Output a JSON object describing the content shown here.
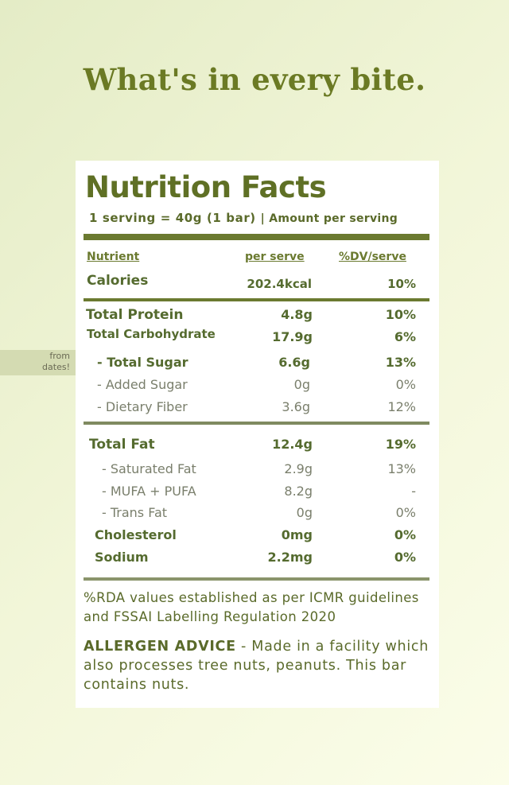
{
  "headline": "What's in every bite.",
  "panel": {
    "title": "Nutrition Facts",
    "serving": "1 serving = 40g (1 bar)",
    "amount_label": "| Amount per serving",
    "columns": {
      "nutrient": "Nutrient",
      "per_serve": "per serve",
      "dv": "%DV/serve"
    },
    "rows": {
      "calories": {
        "name": "Calories",
        "value": "202.4kcal",
        "dv": "10%"
      },
      "protein": {
        "name": "Total Protein",
        "value": "4.8g",
        "dv": "10%"
      },
      "carbohydrate": {
        "name": "Total Carbohydrate",
        "value": "17.9g",
        "dv": "6%"
      },
      "total_sugar": {
        "name": "- Total Sugar",
        "value": "6.6g",
        "dv": "13%"
      },
      "added_sugar": {
        "name": "- Added Sugar",
        "value": "0g",
        "dv": "0%"
      },
      "dietary_fiber": {
        "name": "- Dietary Fiber",
        "value": "3.6g",
        "dv": "12%"
      },
      "total_fat": {
        "name": "Total Fat",
        "value": "12.4g",
        "dv": "19%"
      },
      "saturated_fat": {
        "name": "- Saturated Fat",
        "value": "2.9g",
        "dv": "13%"
      },
      "mufa_pufa": {
        "name": "- MUFA + PUFA",
        "value": "8.2g",
        "dv": "-"
      },
      "trans_fat": {
        "name": "- Trans Fat",
        "value": "0g",
        "dv": "0%"
      },
      "cholesterol": {
        "name": "Cholesterol",
        "value": "0mg",
        "dv": "0%"
      },
      "sodium": {
        "name": "Sodium",
        "value": "2.2mg",
        "dv": "0%"
      }
    },
    "sugar_note_line1": "from",
    "sugar_note_line2": "dates!",
    "rda_note": "%RDA values established as per ICMR guidelines and FSSAI Labelling Regulation 2020",
    "allergen_label": "ALLERGEN ADVICE",
    "allergen_text": " - Made in a facility which also processes tree nuts, peanuts. This bar contains nuts."
  },
  "colors": {
    "accent": "#6b7a24",
    "rule": "#6b7a30",
    "highlight": "#dfe2d2"
  }
}
